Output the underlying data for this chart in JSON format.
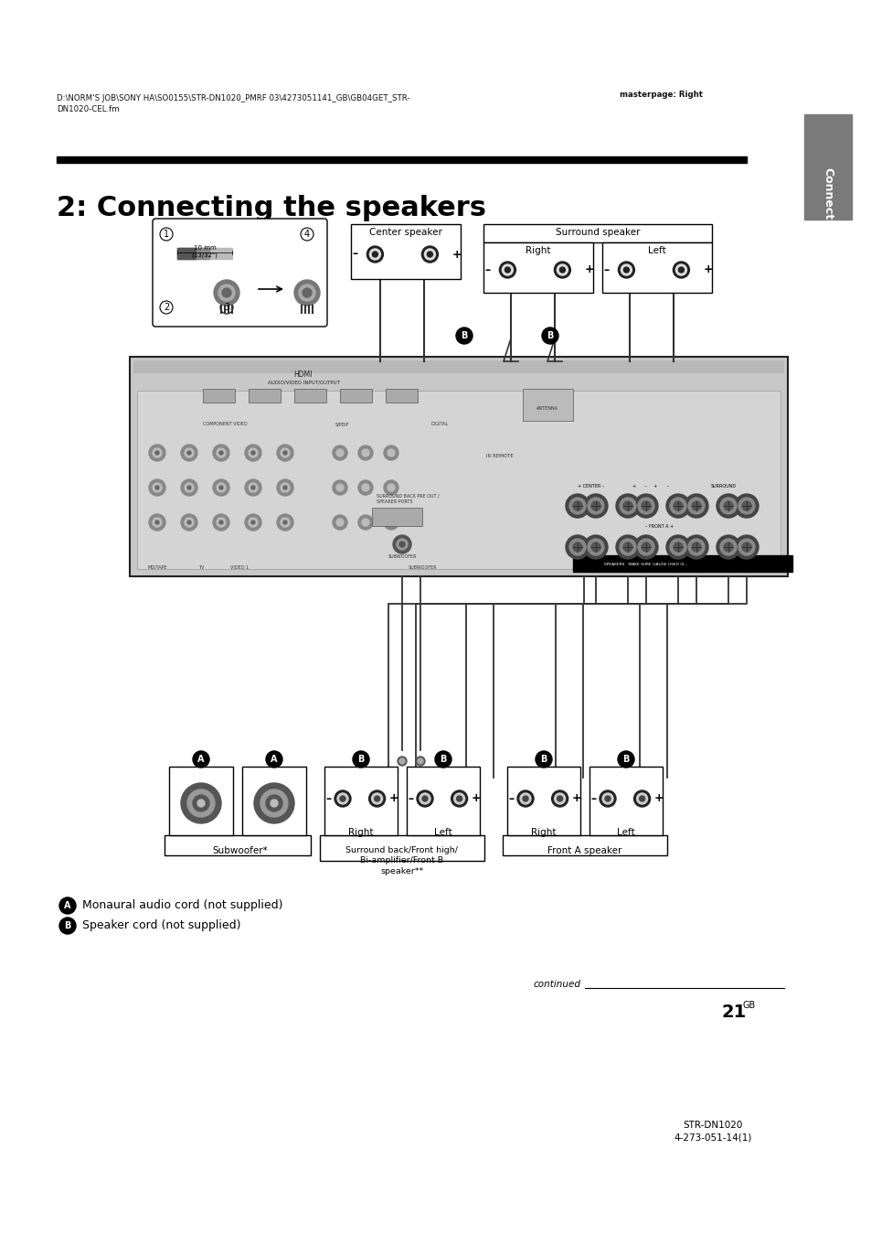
{
  "page_bg": "#ffffff",
  "title": "2: Connecting the speakers",
  "header_left": "D:\\NORM'S JOB\\SONY HA\\SO0155\\STR-DN1020_PMRF 03\\4273051141_GB\\GB04GET_STR-\nDN1020-CEL.fm",
  "header_right": "masterpage: Right",
  "sidebar_text": "Connections",
  "footer_continued": "continued",
  "footer_page": "21",
  "footer_page_sup": "GB",
  "footer_model": "STR-DN1020\n4-273-051-14(1)",
  "legend_A_text": " Monaural audio cord (not supplied)",
  "legend_B_text": " Speaker cord (not supplied)",
  "subwoofer_label": "Subwoofer*",
  "surround_back_label": "Surround back/Front high/\nBi-amplifier/Front B\nspeaker**",
  "front_a_label": "Front A speaker",
  "center_speaker_label": "Center speaker",
  "surround_speaker_label": "Surround speaker",
  "right_label": "Right",
  "left_label": "Left"
}
